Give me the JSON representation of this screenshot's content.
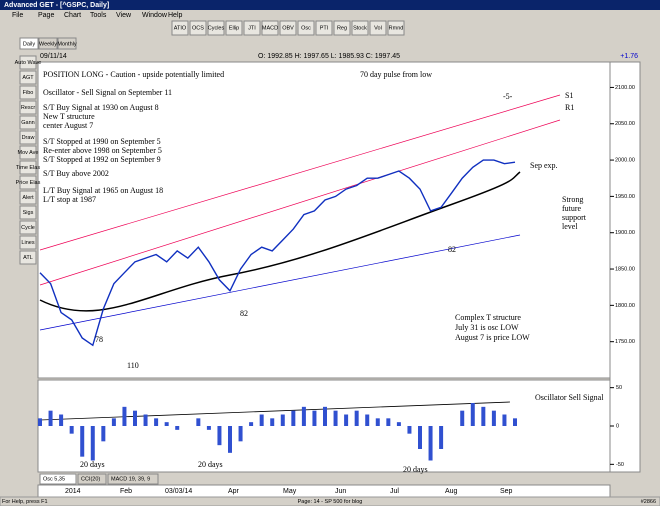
{
  "window": {
    "title": "Advanced GET - [^GSPC, Daily]",
    "menu": [
      "File",
      "Page",
      "Chart",
      "Tools",
      "View",
      "Window",
      "Help"
    ],
    "toolbar": [
      "ATIO",
      "OCS",
      "Cycles",
      "Ellip",
      "JTI",
      "MACD",
      "OBV",
      "Osc",
      "PTI",
      "Reg",
      "Stock",
      "Vol",
      "Rmnd"
    ]
  },
  "left_tools": [
    "Auto Wave",
    "AGT",
    "Fibo",
    "Rescr",
    "Gann",
    "Draw",
    "Mov Ave",
    "Time Elas",
    "Price Elas",
    "Alert",
    "Sigs",
    "Cycle",
    "Lines",
    "ATL"
  ],
  "tabs": [
    "Daily",
    "Weekly",
    "Monthly"
  ],
  "header": {
    "date": "09/11/14",
    "ohlc": "O: 1992.85  H: 1997.65  L: 1985.93  C: 1997.45",
    "change": "+1.76"
  },
  "price_chart": {
    "close": [
      1845,
      1830,
      1790,
      1780,
      1755,
      1745,
      1795,
      1830,
      1845,
      1860,
      1865,
      1870,
      1860,
      1875,
      1865,
      1880,
      1860,
      1835,
      1820,
      1850,
      1870,
      1880,
      1875,
      1890,
      1905,
      1925,
      1930,
      1945,
      1950,
      1960,
      1965,
      1975,
      1975,
      1980,
      1985,
      1975,
      1960,
      1930,
      1935,
      1955,
      1975,
      1990,
      2000,
      2000,
      1995,
      1997
    ],
    "ylim": [
      1700,
      2135
    ],
    "yticks": [
      {
        "value": 2100,
        "label": "2100.00"
      },
      {
        "value": 2050,
        "label": "2050.00"
      },
      {
        "value": 2000,
        "label": "2000.00"
      },
      {
        "value": 1950,
        "label": "1950.00"
      },
      {
        "value": 1900,
        "label": "1900.00"
      },
      {
        "value": 1850,
        "label": "1850.00"
      },
      {
        "value": 1800,
        "label": "1800.00"
      },
      {
        "value": 1750,
        "label": "1750.00"
      }
    ],
    "annotations": [
      "POSITION LONG - Caution - upside potentially limited",
      "Oscillator - Sell Signal on September 11",
      "S/T Buy Signal at 1930 on August 8",
      "New T structure",
      "center August 7",
      "S/T Stopped at 1990 on September 5",
      "Re-enter above 1998 on September 5",
      "S/T Stopped at 1992 on September 9",
      "S/T Buy above 2002",
      "L/T Buy Signal at 1965 on August 18",
      "L/T stop at 1987",
      "70 day pulse from low",
      "S1",
      "R1",
      "-5-",
      "Sep exp.",
      "Strong",
      "future",
      "support",
      "level",
      "Complex T structure",
      "July 31 is osc LOW",
      "August 7 is price LOW",
      "82",
      "82",
      "110",
      "78"
    ]
  },
  "oscillator": {
    "values": [
      10,
      20,
      15,
      -10,
      -40,
      -45,
      -20,
      10,
      25,
      20,
      15,
      10,
      5,
      -5,
      0,
      10,
      -5,
      -25,
      -35,
      -20,
      5,
      15,
      10,
      15,
      20,
      25,
      20,
      25,
      20,
      15,
      20,
      15,
      10,
      10,
      5,
      -10,
      -30,
      -45,
      -30,
      0,
      20,
      30,
      25,
      20,
      15,
      10
    ],
    "ylim": [
      -60,
      60
    ],
    "yticks": [
      50,
      0,
      -50
    ],
    "annotations": [
      "Oscillator Sell Signal",
      "20 days",
      "20 days",
      "20 days"
    ]
  },
  "indicator_tabs": [
    "Osc 5,35",
    "CCI(20)",
    "MACD 19, 39, 9"
  ],
  "date_axis": [
    "2014",
    "Feb",
    "03/03/14",
    "Apr",
    "May",
    "Jun",
    "Jul",
    "Aug",
    "Sep"
  ],
  "status": [
    "For Help, press F1",
    "Page: 14 - SP 500 for blog",
    "#2866"
  ]
}
